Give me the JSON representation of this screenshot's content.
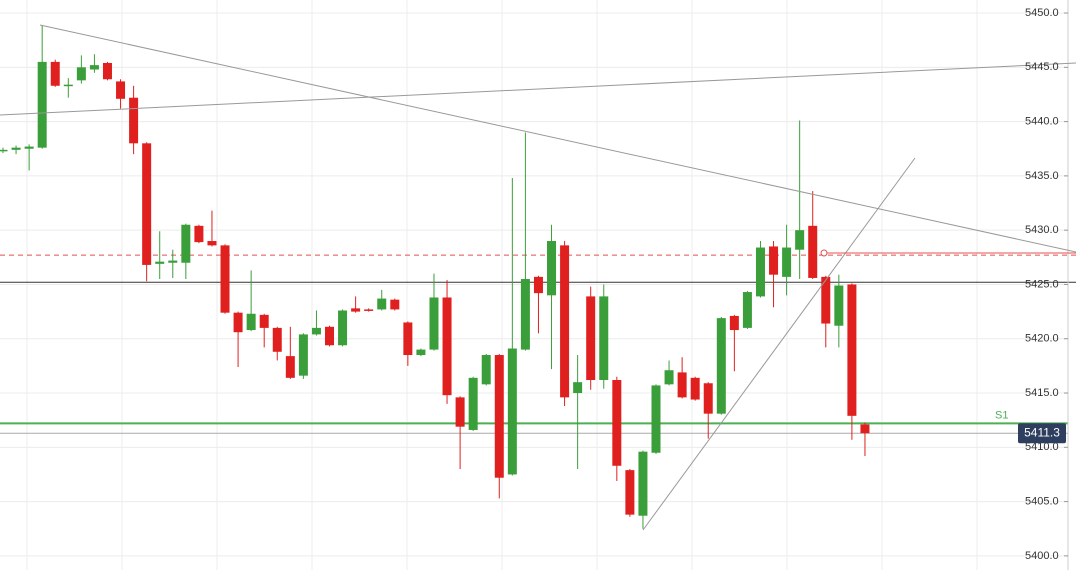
{
  "chart_data": {
    "type": "candlestick",
    "open": [
      5437.3,
      5437.4,
      5437.5,
      5437.6,
      5445.5,
      5443.4,
      5443.8,
      5444.8,
      5445.4,
      5443.7,
      5442.2,
      5438.0,
      5426.9,
      5427.0,
      5427.0,
      5430.4,
      5429.0,
      5428.6,
      5422.4,
      5420.8,
      5422.2,
      5421.0,
      5418.4,
      5416.6,
      5420.4,
      5421.1,
      5419.4,
      5422.8,
      5422.7,
      5422.7,
      5423.6,
      5421.5,
      5418.5,
      5419.0,
      5423.8,
      5414.6,
      5411.6,
      5415.8,
      5418.5,
      5407.5,
      5419.0,
      5425.7,
      5424.0,
      5428.6,
      5415.0,
      5423.9,
      5416.2,
      5416.2,
      5407.9,
      5403.7,
      5409.5,
      5415.8,
      5416.9,
      5416.4,
      5415.9,
      5413.1,
      5422.1,
      5421.0,
      5423.9,
      5428.5,
      5425.7,
      5428.2,
      5430.4,
      5425.7,
      5421.2,
      5425.0,
      5412.1
    ],
    "high": [
      5437.6,
      5437.8,
      5437.9,
      5448.9,
      5445.7,
      5444.0,
      5446.1,
      5446.2,
      5445.5,
      5443.9,
      5443.3,
      5438.1,
      5429.9,
      5428.2,
      5430.6,
      5430.5,
      5431.8,
      5428.7,
      5422.5,
      5426.3,
      5422.3,
      5421.1,
      5421.1,
      5420.5,
      5422.6,
      5421.2,
      5422.7,
      5423.9,
      5422.8,
      5424.5,
      5423.7,
      5421.6,
      5419.1,
      5426.0,
      5425.4,
      5414.7,
      5416.5,
      5418.6,
      5418.6,
      5434.8,
      5439.0,
      5425.8,
      5430.5,
      5429.0,
      5418.5,
      5424.8,
      5425.0,
      5416.5,
      5408.0,
      5409.7,
      5415.8,
      5418.0,
      5418.3,
      5416.5,
      5416.0,
      5422.0,
      5422.2,
      5424.4,
      5429.0,
      5429.0,
      5430.5,
      5440.1,
      5433.6,
      5425.8,
      5425.9,
      5425.1,
      5412.3
    ],
    "low": [
      5437.1,
      5437.0,
      5435.5,
      5437.5,
      5443.2,
      5442.2,
      5443.5,
      5444.5,
      5443.8,
      5441.2,
      5437.0,
      5425.3,
      5425.5,
      5425.6,
      5425.5,
      5428.8,
      5428.5,
      5422.3,
      5417.4,
      5420.7,
      5419.2,
      5418.0,
      5416.3,
      5416.3,
      5420.3,
      5419.3,
      5419.3,
      5422.4,
      5422.5,
      5422.6,
      5422.6,
      5417.5,
      5418.4,
      5418.9,
      5414.0,
      5408.0,
      5411.5,
      5415.7,
      5405.3,
      5407.4,
      5418.9,
      5420.5,
      5417.2,
      5413.8,
      5408.0,
      5415.3,
      5415.4,
      5406.9,
      5403.6,
      5402.5,
      5409.4,
      5415.7,
      5414.5,
      5414.3,
      5410.8,
      5413.0,
      5417.0,
      5420.9,
      5423.8,
      5422.9,
      5424.0,
      5425.5,
      5425.5,
      5419.2,
      5419.2,
      5410.7,
      5409.2
    ],
    "close": [
      5437.4,
      5437.6,
      5437.7,
      5445.5,
      5443.3,
      5443.4,
      5445.0,
      5445.2,
      5443.9,
      5442.1,
      5438.0,
      5426.8,
      5427.1,
      5427.2,
      5430.5,
      5428.9,
      5428.6,
      5422.4,
      5420.6,
      5422.3,
      5421.0,
      5418.8,
      5416.4,
      5420.4,
      5421.0,
      5419.4,
      5422.6,
      5422.5,
      5422.6,
      5423.7,
      5422.7,
      5418.5,
      5419.0,
      5423.8,
      5414.8,
      5411.9,
      5416.4,
      5418.5,
      5407.2,
      5419.1,
      5425.5,
      5424.2,
      5429.0,
      5414.6,
      5416.0,
      5416.2,
      5423.9,
      5408.3,
      5403.8,
      5409.6,
      5415.7,
      5417.1,
      5414.6,
      5414.4,
      5413.1,
      5421.9,
      5420.8,
      5424.3,
      5428.4,
      5425.9,
      5428.4,
      5430.0,
      5425.6,
      5421.4,
      5424.9,
      5412.9,
      5411.3
    ],
    "up_color": "#3a9e3a",
    "down_color": "#e0201f",
    "ylim": [
      5398.7,
      5451.2
    ],
    "yticks": [
      {
        "value": 5400,
        "label": "5400.0"
      },
      {
        "value": 5405,
        "label": "5405.0"
      },
      {
        "value": 5410,
        "label": "5410.0"
      },
      {
        "value": 5415,
        "label": "5415.0"
      },
      {
        "value": 5420,
        "label": "5420.0"
      },
      {
        "value": 5425,
        "label": "5425.0"
      },
      {
        "value": 5430,
        "label": "5430.0"
      },
      {
        "value": 5435,
        "label": "5435.0"
      },
      {
        "value": 5440,
        "label": "5440.0"
      },
      {
        "value": 5445,
        "label": "5445.0"
      },
      {
        "value": 5450,
        "label": "5450.0"
      }
    ],
    "grid": true,
    "horizontal_lines": [
      {
        "value": 5425.2,
        "color": "#333333",
        "dashed": false
      },
      {
        "value": 5427.7,
        "color": "#e05050",
        "dashed": true
      }
    ],
    "support": {
      "label": "S1",
      "value": 5412.2,
      "color": "#4caf50"
    },
    "last_price": 5411.3
  }
}
